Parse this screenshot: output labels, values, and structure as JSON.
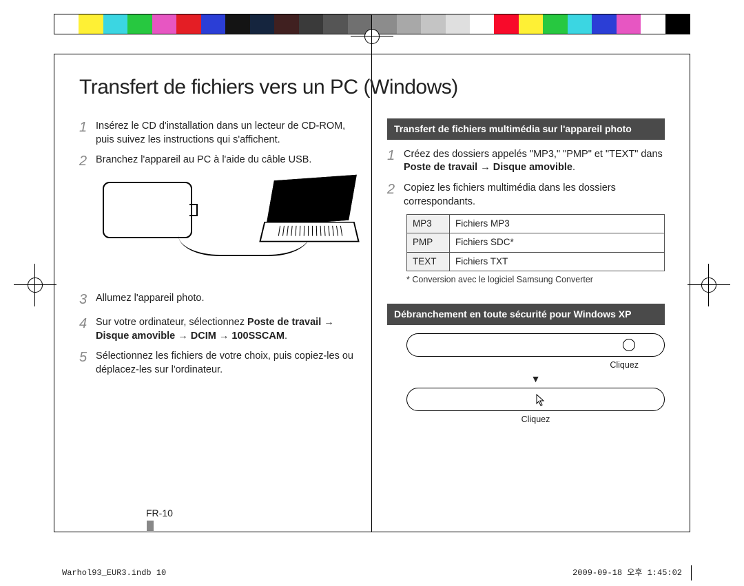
{
  "colorBar": [
    "#ffffff",
    "#fef035",
    "#3bd6e2",
    "#27c840",
    "#e756c2",
    "#e41e25",
    "#2b3ed6",
    "#141414",
    "#15253e",
    "#402020",
    "#3a3a3a",
    "#555555",
    "#707070",
    "#8c8c8c",
    "#a8a8a8",
    "#c4c4c4",
    "#dfdfdf",
    "#ffffff",
    "#f80a2a",
    "#fef035",
    "#27c840",
    "#3bd6e2",
    "#2b3ed6",
    "#e756c2",
    "#ffffff",
    "#000000"
  ],
  "title": "Transfert de fichiers vers un PC (Windows)",
  "left": {
    "steps": [
      {
        "num": "1",
        "text": "Insérez le CD d'installation dans un lecteur de CD-ROM, puis suivez les instructions qui s'affichent."
      },
      {
        "num": "2",
        "text": "Branchez l'appareil au PC à l'aide du câble USB."
      },
      {
        "num": "3",
        "text": "Allumez l'appareil photo."
      },
      {
        "num": "4",
        "text_pre": "Sur votre ordinateur, sélectionnez ",
        "text_bold": "Poste de travail → Disque amovible → DCIM → 100SSCAM",
        "text_post": "."
      },
      {
        "num": "5",
        "text": "Sélectionnez les fichiers de votre choix, puis copiez-les ou déplacez-les sur l'ordinateur."
      }
    ]
  },
  "right": {
    "section1_title": "Transfert de fichiers multimédia sur l'appareil photo",
    "steps": [
      {
        "num": "1",
        "text_pre": "Créez des dossiers appelés \"MP3,\" \"PMP\" et \"TEXT\" dans ",
        "text_bold": "Poste de travail → Disque amovible",
        "text_post": "."
      },
      {
        "num": "2",
        "text": "Copiez les fichiers multimédia dans les dossiers correspondants."
      }
    ],
    "table": {
      "rows": [
        [
          "MP3",
          "Fichiers MP3"
        ],
        [
          "PMP",
          "Fichiers SDC*"
        ],
        [
          "TEXT",
          "Fichiers TXT"
        ]
      ]
    },
    "footnote": "* Conversion avec le logiciel Samsung Converter",
    "section2_title": "Débranchement en toute sécurité pour Windows XP",
    "click1": "Cliquez",
    "click2": "Cliquez"
  },
  "pageNum": "FR-10",
  "footerLeft": "Warhol93_EUR3.indb   10",
  "footerRight": "2009-09-18   오후 1:45:02"
}
